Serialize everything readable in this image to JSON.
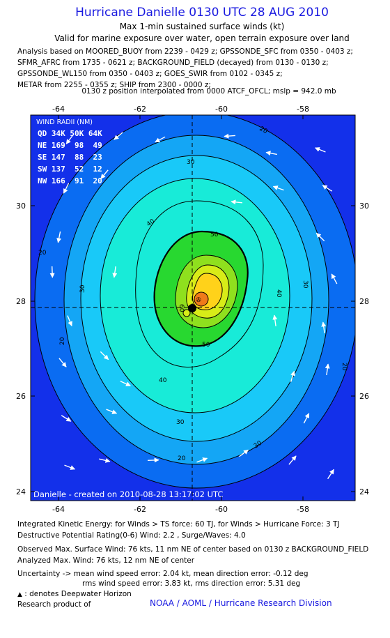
{
  "header": {
    "title": "Hurricane Danielle 0130 UTC 28 AUG 2010",
    "subtitle1": "Max 1-min sustained surface winds (kt)",
    "subtitle2": "Valid for marine exposure over water, open terrain exposure over land",
    "analysis_lines": [
      "Analysis based on MOORED_BUOY from 2239 - 0429 z; GPSSONDE_SFC from 0350 - 0403 z;",
      "SFMR_AFRC from 1735 - 0621 z; BACKGROUND_FIELD (decayed) from 0130 - 0130 z;",
      "GPSSONDE_WL150 from 0350 - 0403 z; GOES_SWIR from 0102 - 0345 z;",
      "METAR from 2255 - 0355 z; SHIP from 2300 - 0000 z;"
    ],
    "interp_note": "0130 z position interpolated from 0000 ATCF_OFCL; mslp = 942.0 mb"
  },
  "map": {
    "lon_ticks": [
      "-64",
      "-62",
      "-60",
      "-58"
    ],
    "lat_ticks": [
      "30",
      "28",
      "26",
      "24"
    ],
    "lon_range": [
      -64.6,
      -56.7
    ],
    "lat_range": [
      23.8,
      31.8
    ],
    "center": {
      "lon": -60.7,
      "lat": 27.85
    },
    "wind_radii": {
      "title": "WIND RADII (NM)",
      "header": "QD 34K 50K 64K",
      "rows": [
        "NE 169  98  49",
        "SE 147  88  23",
        "SW 137  52  12",
        "NW 166  91  20"
      ]
    },
    "contour_labels": [
      "20",
      "20",
      "20",
      "30",
      "30",
      "30",
      "30",
      "40",
      "40",
      "40",
      "50",
      "60",
      "50",
      "20",
      "30",
      "20"
    ],
    "credit_line": "Danielle - created on 2010-08-28 13:17:02 UTC",
    "colors": {
      "lt20": "#1e2ef0",
      "w20": "#0a6cf2",
      "w30": "#14a6f5",
      "w34": "#19c9f8",
      "w40": "#18ebd8",
      "w50": "#28d830",
      "w64": "#8fe01e",
      "w70": "#d8ec18",
      "w80": "#ffd21a",
      "max": "#f07a1a",
      "outer": "#1330ea"
    }
  },
  "footer": {
    "ike": "Integrated Kinetic Energy:  for Winds > TS force: 60 TJ,  for Winds > Hurricane Force: 3 TJ",
    "dpr": "Destructive Potential Rating(0-6)   Wind: 2.2 , Surge/Waves: 4.0",
    "obs_max": "Observed Max. Surface Wind: 76 kts, 11 nm NE of center based on 0130 z BACKGROUND_FIELD",
    "analyzed_max": "Analyzed Max. Wind: 76 kts, 12 nm NE of center",
    "uncertainty1": "Uncertainty -> mean wind speed error: 2.04 kt,   mean direction error:  -0.12 deg",
    "uncertainty2": "rms wind speed error: 3.83 kt,   rms direction error: 5.31 deg",
    "deepwater": ": denotes Deepwater Horizon",
    "research": "Research product of",
    "credit": "NOAA / AOML / Hurricane Research Division"
  }
}
